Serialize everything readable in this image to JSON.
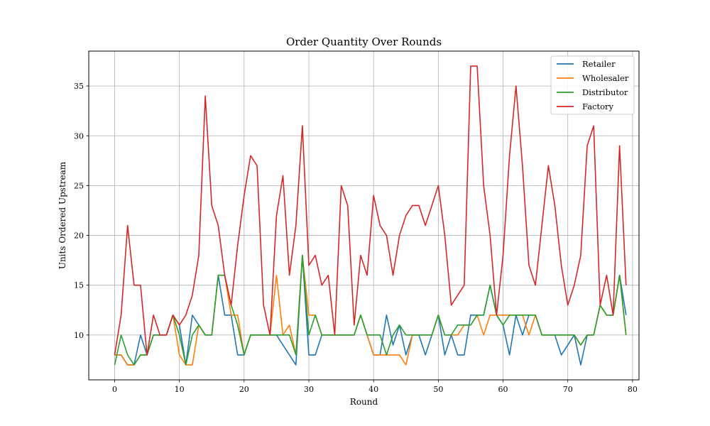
{
  "chart_data": {
    "type": "line",
    "title": "Order Quantity Over Rounds",
    "xlabel": "Round",
    "ylabel": "Units Ordered Upstream",
    "xlim": [
      -4,
      81
    ],
    "ylim": [
      5.5,
      38.5
    ],
    "xticks": [
      0,
      10,
      20,
      30,
      40,
      50,
      60,
      70,
      80
    ],
    "yticks": [
      10,
      15,
      20,
      25,
      30,
      35
    ],
    "grid": true,
    "legend_position": "top-right",
    "x": [
      0,
      1,
      2,
      3,
      4,
      5,
      6,
      7,
      8,
      9,
      10,
      11,
      12,
      13,
      14,
      15,
      16,
      17,
      18,
      19,
      20,
      21,
      22,
      23,
      24,
      25,
      26,
      27,
      28,
      29,
      30,
      31,
      32,
      33,
      34,
      35,
      36,
      37,
      38,
      39,
      40,
      41,
      42,
      43,
      44,
      45,
      46,
      47,
      48,
      49,
      50,
      51,
      52,
      53,
      54,
      55,
      56,
      57,
      58,
      59,
      60,
      61,
      62,
      63,
      64,
      65,
      66,
      67,
      68,
      69,
      70,
      71,
      72,
      73,
      74,
      75,
      76,
      77,
      78,
      79
    ],
    "series": [
      {
        "name": "Retailer",
        "color": "#1f77b4",
        "values": [
          8,
          8,
          7,
          7,
          10,
          8,
          10,
          10,
          10,
          12,
          11,
          7,
          12,
          11,
          10,
          10,
          16,
          12,
          12,
          8,
          8,
          10,
          10,
          10,
          10,
          10,
          9,
          8,
          7,
          18,
          8,
          8,
          10,
          10,
          10,
          10,
          10,
          10,
          12,
          10,
          8,
          8,
          12,
          9,
          11,
          8,
          10,
          10,
          8,
          10,
          12,
          8,
          10,
          8,
          8,
          12,
          12,
          12,
          15,
          12,
          11,
          8,
          12,
          10,
          12,
          12,
          10,
          10,
          10,
          8,
          9,
          10,
          7,
          10,
          10,
          13,
          12,
          12,
          16,
          12
        ]
      },
      {
        "name": "Wholesaler",
        "color": "#ff7f0e",
        "values": [
          8,
          8,
          7,
          7,
          8,
          8,
          10,
          10,
          10,
          12,
          8,
          7,
          7,
          11,
          10,
          10,
          16,
          16,
          12,
          12,
          8,
          10,
          10,
          10,
          10,
          16,
          10,
          11,
          8,
          18,
          12,
          12,
          10,
          10,
          10,
          10,
          10,
          10,
          12,
          10,
          8,
          8,
          8,
          8,
          8,
          7,
          10,
          10,
          10,
          10,
          12,
          10,
          10,
          10,
          11,
          11,
          12,
          10,
          12,
          12,
          12,
          12,
          12,
          12,
          10,
          12,
          10,
          10,
          10,
          10,
          10,
          10,
          9,
          10,
          10,
          13,
          12,
          12,
          16,
          10
        ]
      },
      {
        "name": "Distributor",
        "color": "#2ca02c",
        "values": [
          7,
          10,
          8,
          7,
          8,
          8,
          10,
          10,
          10,
          12,
          10,
          7,
          10,
          11,
          10,
          10,
          16,
          16,
          13,
          11,
          8,
          10,
          10,
          10,
          10,
          10,
          10,
          10,
          8,
          18,
          10,
          12,
          10,
          10,
          10,
          10,
          10,
          10,
          12,
          10,
          10,
          10,
          8,
          10,
          11,
          10,
          10,
          10,
          10,
          10,
          12,
          10,
          10,
          11,
          11,
          11,
          12,
          12,
          15,
          12,
          11,
          12,
          12,
          12,
          12,
          12,
          10,
          10,
          10,
          10,
          10,
          10,
          9,
          10,
          10,
          13,
          12,
          12,
          16,
          10
        ]
      },
      {
        "name": "Factory",
        "color": "#d62728",
        "values": [
          8,
          12,
          21,
          15,
          15,
          8,
          12,
          10,
          10,
          12,
          11,
          12,
          14,
          18,
          34,
          23,
          21,
          16,
          13,
          19,
          24,
          28,
          27,
          13,
          10,
          22,
          26,
          16,
          21,
          31,
          17,
          18,
          15,
          16,
          10,
          25,
          23,
          11,
          18,
          16,
          24,
          21,
          20,
          16,
          20,
          22,
          23,
          23,
          21,
          23,
          25,
          20,
          13,
          14,
          15,
          37,
          37,
          25,
          20,
          12,
          18,
          28,
          35,
          27,
          17,
          15,
          21,
          27,
          23,
          17,
          13,
          15,
          18,
          29,
          31,
          13,
          16,
          12,
          29,
          15
        ]
      }
    ]
  }
}
